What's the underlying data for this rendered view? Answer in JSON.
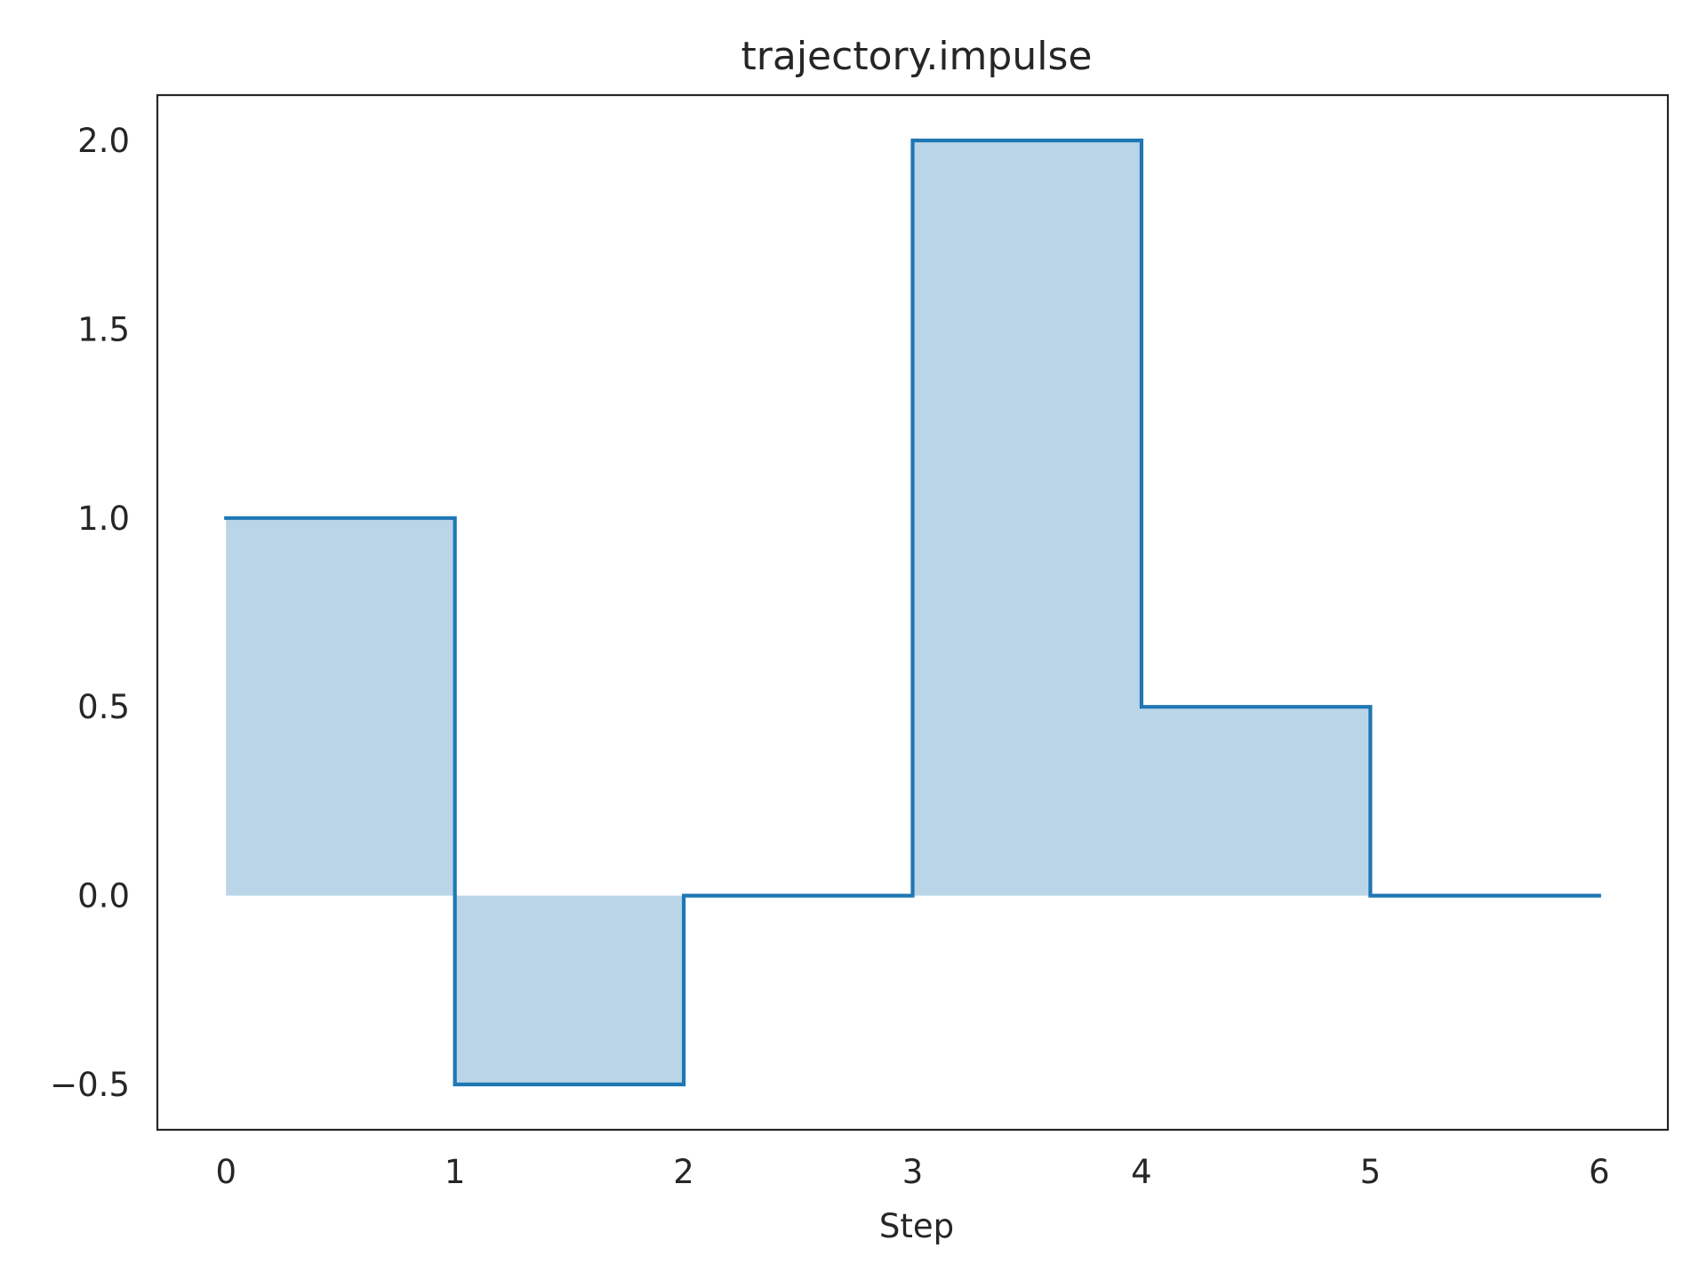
{
  "chart_data": {
    "type": "area",
    "title": "trajectory.impulse",
    "xlabel": "Step",
    "ylabel": "",
    "step": "post",
    "x": [
      0,
      1,
      2,
      3,
      4,
      5,
      6
    ],
    "series": [
      {
        "values": [
          1.0,
          -0.5,
          0.0,
          2.0,
          0.5,
          0.0,
          0.0
        ],
        "line_color": "#1f77b4",
        "fill_color": "#bad5e8"
      }
    ],
    "xlim": [
      -0.3,
      6.3
    ],
    "ylim": [
      -0.62,
      2.12
    ],
    "xticks": [
      0,
      1,
      2,
      3,
      4,
      5,
      6
    ],
    "xtick_labels": [
      "0",
      "1",
      "2",
      "3",
      "4",
      "5",
      "6"
    ],
    "yticks": [
      -0.5,
      0.0,
      0.5,
      1.0,
      1.5,
      2.0
    ],
    "ytick_labels": [
      "−0.5",
      "0.0",
      "0.5",
      "1.0",
      "1.5",
      "2.0"
    ],
    "grid": false,
    "legend": "none",
    "frame_color": "#262626",
    "background": "#ffffff"
  }
}
